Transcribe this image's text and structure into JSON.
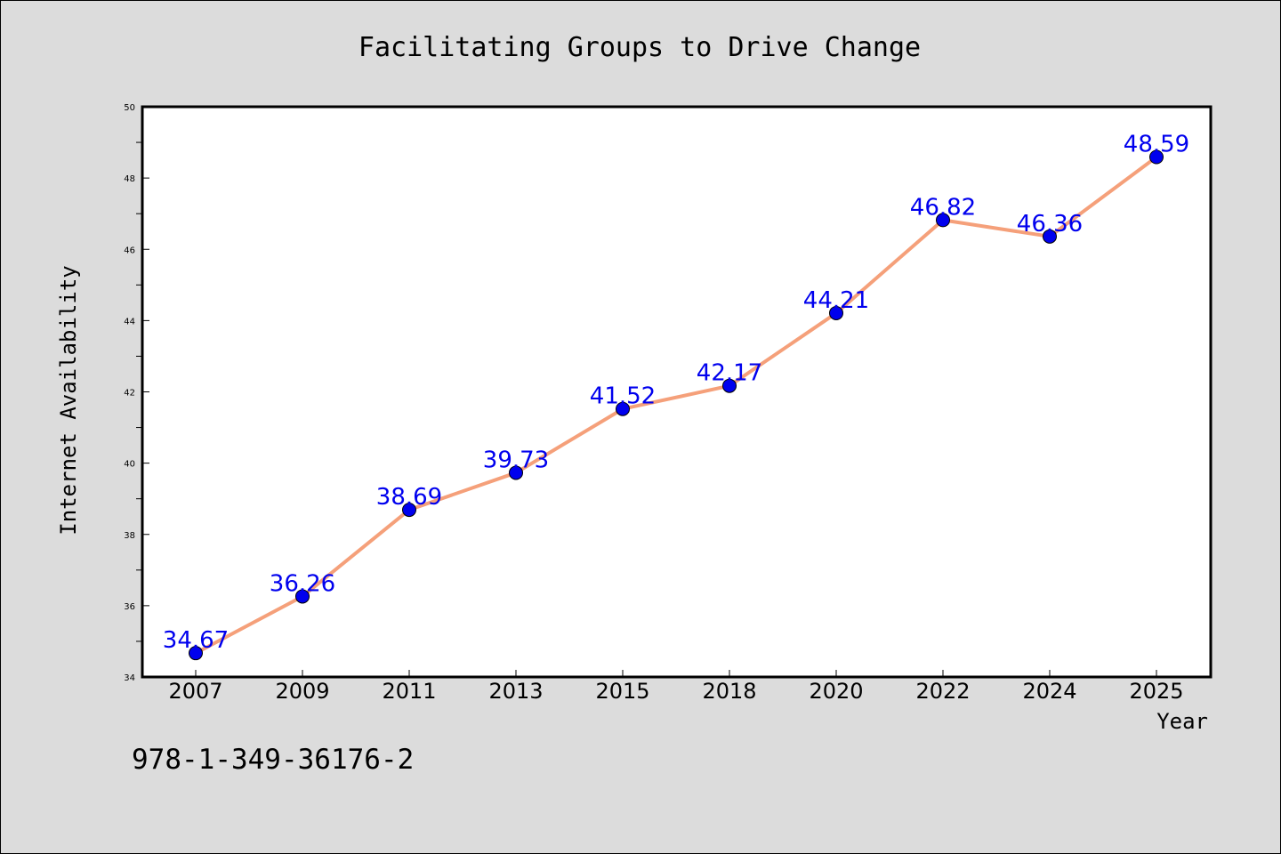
{
  "chart_data": {
    "type": "line",
    "title": "Facilitating Groups to Drive Change",
    "xlabel": "Year",
    "ylabel": "Internet Availability",
    "categories": [
      "2007",
      "2009",
      "2011",
      "2013",
      "2015",
      "2018",
      "2020",
      "2022",
      "2024",
      "2025"
    ],
    "series": [
      {
        "values": [
          34.67,
          36.26,
          38.69,
          39.73,
          41.52,
          42.17,
          44.21,
          46.82,
          46.36,
          48.59
        ]
      }
    ],
    "data_labels": [
      "34.67",
      "36.26",
      "38.69",
      "39.73",
      "41.52",
      "42.17",
      "44.21",
      "46.82",
      "46.36",
      "48.59"
    ],
    "ylim": [
      34,
      50
    ],
    "yticks": [
      34,
      36,
      38,
      40,
      42,
      44,
      46,
      48,
      50
    ],
    "grid": false,
    "colors": {
      "line": "#f5a07a",
      "marker": "#0000ee",
      "label": "#0000ee"
    }
  },
  "footer": {
    "isbn": "978-1-349-36176-2"
  }
}
